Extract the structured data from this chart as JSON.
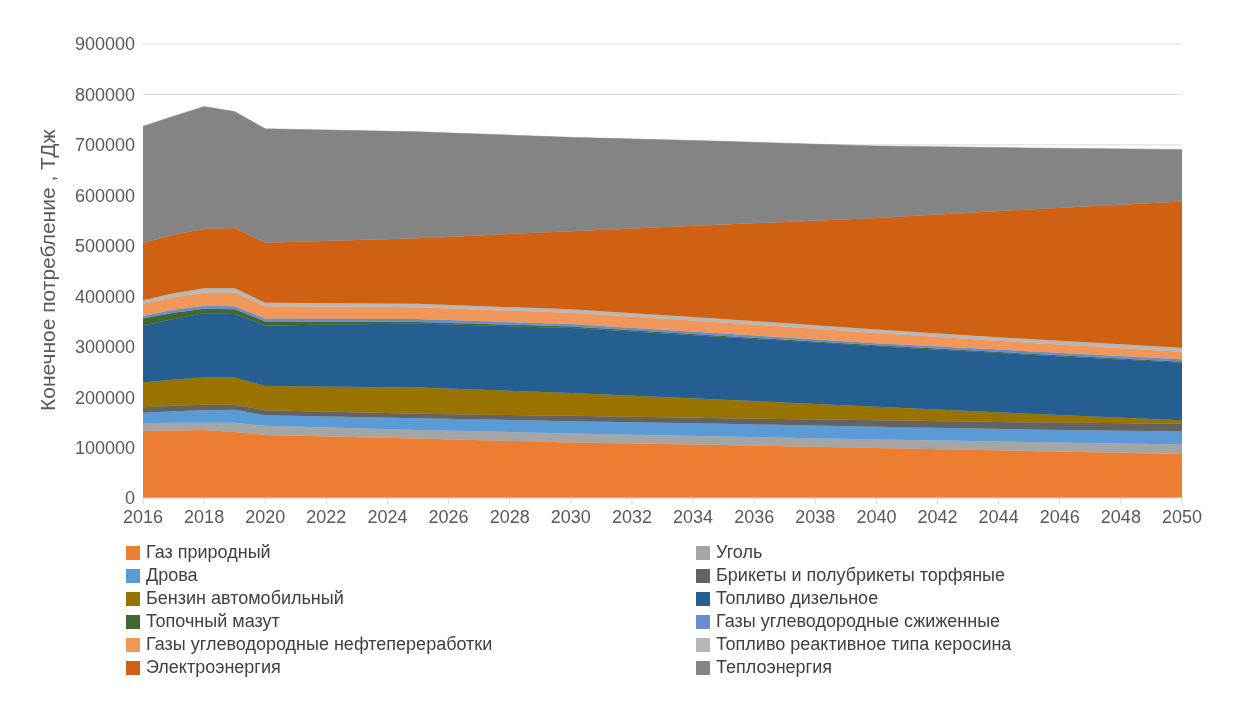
{
  "chart_data": {
    "type": "area",
    "stacked": true,
    "ylabel": "Конечное потребление , ТДж",
    "x": [
      2016,
      2017,
      2018,
      2019,
      2020,
      2025,
      2030,
      2035,
      2040,
      2045,
      2050
    ],
    "xlim": [
      2016,
      2050
    ],
    "xticks": [
      2016,
      2018,
      2020,
      2022,
      2024,
      2026,
      2028,
      2030,
      2032,
      2034,
      2036,
      2038,
      2040,
      2042,
      2044,
      2046,
      2048,
      2050
    ],
    "ylim": [
      0,
      900000
    ],
    "yticks": [
      0,
      100000,
      200000,
      300000,
      400000,
      500000,
      600000,
      700000,
      800000,
      900000
    ],
    "grid": "y",
    "legend": "bottom",
    "series": [
      {
        "name": "Газ природный",
        "color": "#ed7d31",
        "values": [
          133000,
          134000,
          135000,
          131000,
          125000,
          118000,
          110000,
          105000,
          99000,
          93000,
          87000
        ]
      },
      {
        "name": "Уголь",
        "color": "#a5a5a5",
        "values": [
          15000,
          15000,
          14000,
          18000,
          18000,
          17000,
          18000,
          17000,
          17000,
          18000,
          19000
        ]
      },
      {
        "name": "Дрова",
        "color": "#5b9bd5",
        "values": [
          21000,
          23000,
          25000,
          26000,
          21000,
          23000,
          24000,
          25000,
          25000,
          25000,
          26000
        ]
      },
      {
        "name": "Брикеты и полубрикеты торфяные",
        "color": "#636363",
        "values": [
          11000,
          11000,
          11000,
          10000,
          10000,
          9000,
          11000,
          11000,
          13000,
          14000,
          15000
        ]
      },
      {
        "name": "Бензин автомобильный",
        "color": "#997300",
        "values": [
          49000,
          52000,
          54000,
          54000,
          48000,
          52000,
          45000,
          37000,
          27000,
          17000,
          7000
        ]
      },
      {
        "name": "Топливо дизельное",
        "color": "#255e91",
        "values": [
          113000,
          120000,
          127000,
          126000,
          120000,
          127000,
          129000,
          124000,
          120000,
          117000,
          114000
        ]
      },
      {
        "name": "Топочный мазут",
        "color": "#43682b",
        "values": [
          14000,
          12000,
          9000,
          9000,
          8000,
          3000,
          3000,
          2000,
          2000,
          2000,
          2000
        ]
      },
      {
        "name": "Газы углеводородные сжиженные",
        "color": "#698ed0",
        "values": [
          5000,
          6000,
          6000,
          6000,
          6000,
          6000,
          5000,
          5000,
          4000,
          5000,
          5000
        ]
      },
      {
        "name": "Газы углеводородные нефтепереработки",
        "color": "#f1975a",
        "values": [
          24000,
          25000,
          26000,
          27000,
          24000,
          23000,
          22000,
          22000,
          20000,
          17000,
          15000
        ]
      },
      {
        "name": "Топливо реактивное типа керосина",
        "color": "#b7b7b7",
        "values": [
          7000,
          8000,
          9000,
          9000,
          7000,
          7000,
          7000,
          7000,
          7000,
          7000,
          8000
        ]
      },
      {
        "name": "Электроэнергия",
        "color": "#d06012",
        "values": [
          114000,
          116000,
          118000,
          119000,
          119000,
          130000,
          155000,
          187000,
          221000,
          257000,
          290000
        ]
      },
      {
        "name": "Теплоэнергия",
        "color": "#848484",
        "values": [
          231000,
          235000,
          242000,
          231000,
          226000,
          211000,
          186000,
          165000,
          143000,
          122000,
          103000
        ]
      }
    ]
  }
}
